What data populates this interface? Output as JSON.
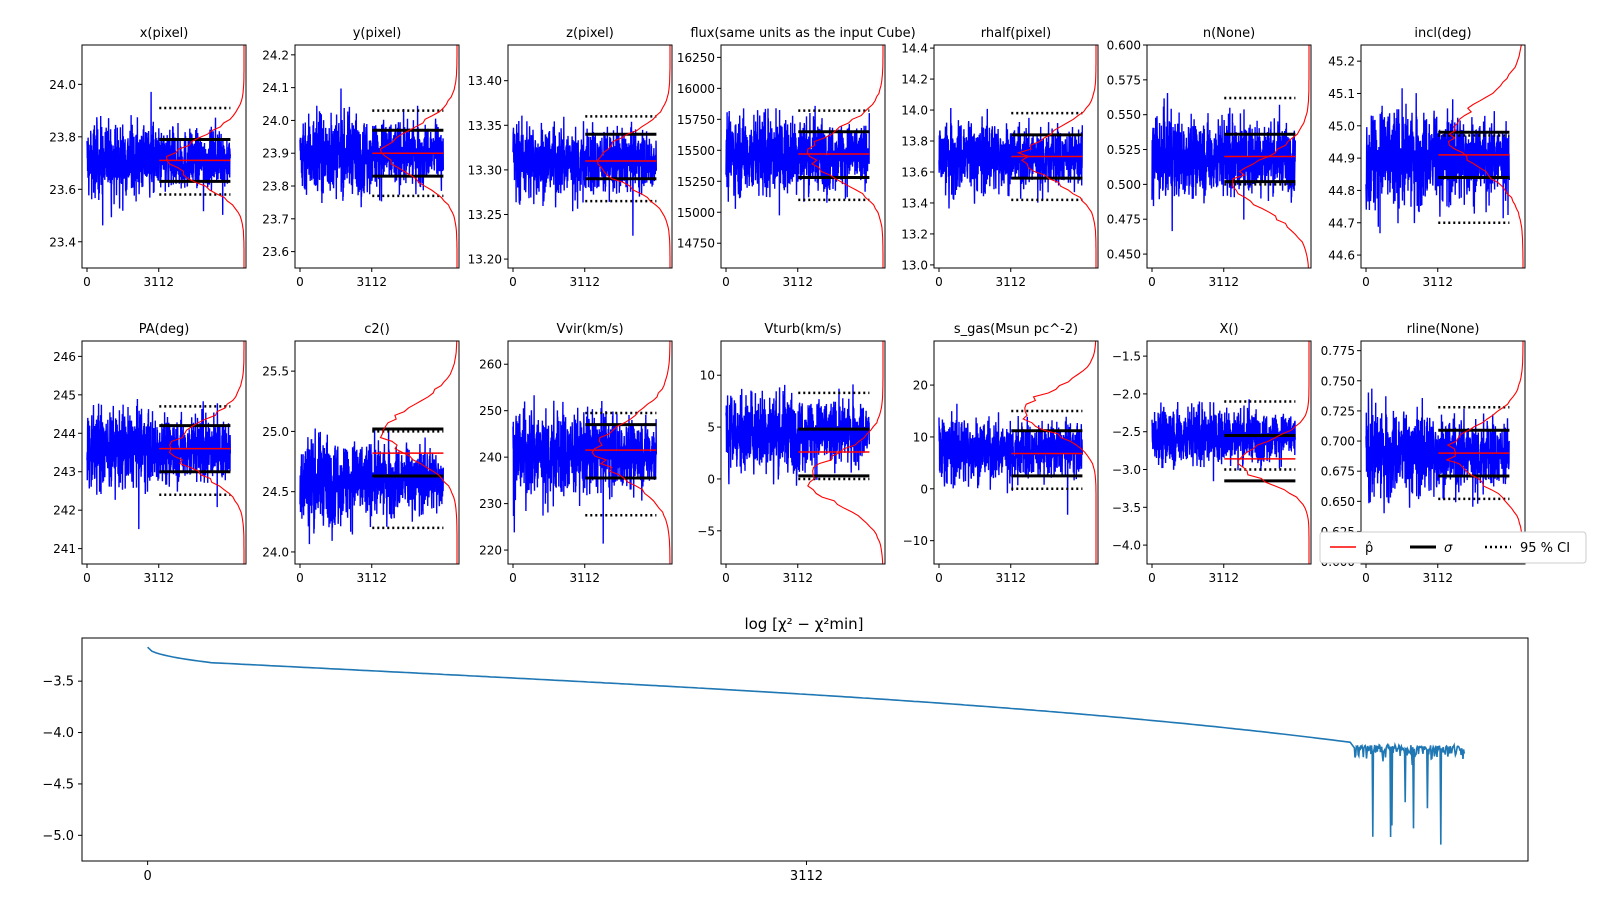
{
  "figure": {
    "type": "mcmc-trace-panel",
    "legend": {
      "placement": "lower-right-of-middle-row",
      "entries": [
        {
          "label": "p̂",
          "style": "red-line",
          "color": "#ff0000"
        },
        {
          "label": "σ",
          "style": "black-thick-line",
          "color": "#000000"
        },
        {
          "label": "95 % CI",
          "style": "black-dotted-line",
          "color": "#000000"
        }
      ]
    },
    "colors": {
      "trace": "#0000ff",
      "histogram": "#ff0000",
      "best": "#ff0000",
      "sigma": "#000000",
      "chi2": "#1f77b4"
    }
  },
  "chart_data": [
    {
      "type": "line",
      "title": "x(pixel)",
      "xticks": [
        "0",
        "3112"
      ],
      "yticks": [
        {
          "v": 23.4,
          "l": "23.4"
        },
        {
          "v": 23.6,
          "l": "23.6"
        },
        {
          "v": 23.8,
          "l": "23.8"
        },
        {
          "v": 24.0,
          "l": "24.0"
        }
      ],
      "ylim": [
        23.3,
        24.15
      ],
      "center": 23.71,
      "band": [
        23.58,
        23.9
      ],
      "best": 23.71,
      "sigma": [
        23.63,
        23.79
      ],
      "ci": [
        23.58,
        23.91
      ],
      "hist_peak": 23.71
    },
    {
      "type": "line",
      "title": "y(pixel)",
      "xticks": [
        "0",
        "3112"
      ],
      "yticks": [
        {
          "v": 23.6,
          "l": "23.6"
        },
        {
          "v": 23.7,
          "l": "23.7"
        },
        {
          "v": 23.8,
          "l": "23.8"
        },
        {
          "v": 23.9,
          "l": "23.9"
        },
        {
          "v": 24.0,
          "l": "24.0"
        },
        {
          "v": 24.1,
          "l": "24.1"
        },
        {
          "v": 24.2,
          "l": "24.2"
        }
      ],
      "ylim": [
        23.55,
        24.23
      ],
      "center": 23.9,
      "band": [
        23.76,
        24.04
      ],
      "best": 23.9,
      "sigma": [
        23.83,
        23.97
      ],
      "ci": [
        23.77,
        24.03
      ],
      "hist_peak": 23.9
    },
    {
      "type": "line",
      "title": "z(pixel)",
      "xticks": [
        "0",
        "3112"
      ],
      "yticks": [
        {
          "v": 13.2,
          "l": "13.20"
        },
        {
          "v": 13.25,
          "l": "13.25"
        },
        {
          "v": 13.3,
          "l": "13.30"
        },
        {
          "v": 13.35,
          "l": "13.35"
        },
        {
          "v": 13.4,
          "l": "13.40"
        }
      ],
      "ylim": [
        13.19,
        13.44
      ],
      "center": 13.31,
      "band": [
        13.26,
        13.36
      ],
      "best": 13.31,
      "sigma": [
        13.29,
        13.34
      ],
      "ci": [
        13.265,
        13.36
      ],
      "hist_peak": 13.31
    },
    {
      "type": "line",
      "title": "flux(same units as the input Cube)",
      "xticks": [
        "0",
        "3112"
      ],
      "yticks": [
        {
          "v": 14750,
          "l": "14750"
        },
        {
          "v": 15000,
          "l": "15000"
        },
        {
          "v": 15250,
          "l": "15250"
        },
        {
          "v": 15500,
          "l": "15500"
        },
        {
          "v": 15750,
          "l": "15750"
        },
        {
          "v": 16000,
          "l": "16000"
        },
        {
          "v": 16250,
          "l": "16250"
        }
      ],
      "ylim": [
        14550,
        16350
      ],
      "center": 15470,
      "band": [
        15100,
        15850
      ],
      "best": 15470,
      "sigma": [
        15280,
        15650
      ],
      "ci": [
        15100,
        15820
      ],
      "hist_peak": 15470
    },
    {
      "type": "line",
      "title": "rhalf(pixel)",
      "xticks": [
        "0",
        "3112"
      ],
      "yticks": [
        {
          "v": 13.0,
          "l": "13.0"
        },
        {
          "v": 13.2,
          "l": "13.2"
        },
        {
          "v": 13.4,
          "l": "13.4"
        },
        {
          "v": 13.6,
          "l": "13.6"
        },
        {
          "v": 13.8,
          "l": "13.8"
        },
        {
          "v": 14.0,
          "l": "14.0"
        },
        {
          "v": 14.2,
          "l": "14.2"
        },
        {
          "v": 14.4,
          "l": "14.4"
        }
      ],
      "ylim": [
        12.98,
        14.42
      ],
      "center": 13.7,
      "band": [
        13.42,
        13.98
      ],
      "best": 13.7,
      "sigma": [
        13.56,
        13.84
      ],
      "ci": [
        13.42,
        13.98
      ],
      "hist_peak": 13.7
    },
    {
      "type": "line",
      "title": "n(None)",
      "xticks": [
        "0",
        "3112"
      ],
      "yticks": [
        {
          "v": 0.45,
          "l": "0.450"
        },
        {
          "v": 0.475,
          "l": "0.475"
        },
        {
          "v": 0.5,
          "l": "0.500"
        },
        {
          "v": 0.525,
          "l": "0.525"
        },
        {
          "v": 0.55,
          "l": "0.550"
        },
        {
          "v": 0.575,
          "l": "0.575"
        },
        {
          "v": 0.6,
          "l": "0.600"
        }
      ],
      "ylim": [
        0.44,
        0.6
      ],
      "center": 0.52,
      "band": [
        0.5,
        0.57
      ],
      "best": 0.52,
      "sigma": [
        0.502,
        0.536
      ],
      "ci": [
        0.5,
        0.562
      ],
      "hist_peak": 0.5
    },
    {
      "type": "line",
      "title": "incl(deg)",
      "xticks": [
        "0",
        "3112"
      ],
      "yticks": [
        {
          "v": 44.6,
          "l": "44.6"
        },
        {
          "v": 44.7,
          "l": "44.7"
        },
        {
          "v": 44.8,
          "l": "44.8"
        },
        {
          "v": 44.9,
          "l": "44.9"
        },
        {
          "v": 45.0,
          "l": "45.0"
        },
        {
          "v": 45.1,
          "l": "45.1"
        },
        {
          "v": 45.2,
          "l": "45.2"
        }
      ],
      "ylim": [
        44.56,
        45.25
      ],
      "center": 44.9,
      "band": [
        44.6,
        44.97
      ],
      "best": 44.91,
      "sigma": [
        44.84,
        44.98
      ],
      "ci": [
        44.7,
        44.97
      ],
      "hist_peak": 44.97
    },
    {
      "type": "line",
      "title": "PA(deg)",
      "xticks": [
        "0",
        "3112"
      ],
      "yticks": [
        {
          "v": 241,
          "l": "241"
        },
        {
          "v": 242,
          "l": "242"
        },
        {
          "v": 243,
          "l": "243"
        },
        {
          "v": 244,
          "l": "244"
        },
        {
          "v": 245,
          "l": "245"
        },
        {
          "v": 246,
          "l": "246"
        }
      ],
      "ylim": [
        240.6,
        246.4
      ],
      "center": 243.6,
      "band": [
        242.4,
        244.8
      ],
      "best": 243.6,
      "sigma": [
        243.0,
        244.2
      ],
      "ci": [
        242.4,
        244.7
      ],
      "hist_peak": 243.6
    },
    {
      "type": "line",
      "title": "c2()",
      "xticks": [
        "0",
        "3112"
      ],
      "yticks": [
        {
          "v": 24.0,
          "l": "24.0"
        },
        {
          "v": 24.5,
          "l": "24.5"
        },
        {
          "v": 25.0,
          "l": "25.0"
        },
        {
          "v": 25.5,
          "l": "25.5"
        }
      ],
      "ylim": [
        23.9,
        25.75
      ],
      "center": 24.6,
      "band": [
        24.2,
        25.0
      ],
      "best": 24.82,
      "sigma": [
        24.63,
        25.02
      ],
      "ci": [
        24.2,
        25.0
      ],
      "hist_peak": 25.0
    },
    {
      "type": "line",
      "title": "Vvir(km/s)",
      "xticks": [
        "0",
        "3112"
      ],
      "yticks": [
        {
          "v": 220,
          "l": "220"
        },
        {
          "v": 230,
          "l": "230"
        },
        {
          "v": 240,
          "l": "240"
        },
        {
          "v": 250,
          "l": "250"
        },
        {
          "v": 260,
          "l": "260"
        }
      ],
      "ylim": [
        217,
        265
      ],
      "center": 241,
      "band": [
        227,
        250
      ],
      "best": 241.5,
      "sigma": [
        235.5,
        247
      ],
      "ci": [
        227.5,
        249.5
      ],
      "hist_peak": 241.5
    },
    {
      "type": "line",
      "title": "Vturb(km/s)",
      "xticks": [
        "0",
        "3112"
      ],
      "yticks": [
        {
          "v": -5,
          "l": "−5"
        },
        {
          "v": 0,
          "l": "0"
        },
        {
          "v": 5,
          "l": "5"
        },
        {
          "v": 10,
          "l": "10"
        }
      ],
      "ylim": [
        -8.2,
        13.3
      ],
      "center": 4.5,
      "band": [
        0,
        9
      ],
      "best": 2.6,
      "sigma": [
        0.3,
        4.8
      ],
      "ci": [
        0,
        8.3
      ],
      "hist_peak": 0
    },
    {
      "type": "line",
      "title": "s_gas(Msun pc^-2)",
      "xticks": [
        "0",
        "3112"
      ],
      "yticks": [
        {
          "v": -10,
          "l": "−10"
        },
        {
          "v": 0,
          "l": "0"
        },
        {
          "v": 10,
          "l": "10"
        },
        {
          "v": 20,
          "l": "20"
        }
      ],
      "ylim": [
        -14.5,
        28.5
      ],
      "center": 7.5,
      "band": [
        0,
        15
      ],
      "best": 6.8,
      "sigma": [
        2.5,
        11.2
      ],
      "ci": [
        0,
        15
      ],
      "hist_peak": 15
    },
    {
      "type": "line",
      "title": "X()",
      "xticks": [
        "0",
        "3112"
      ],
      "yticks": [
        {
          "v": -4.0,
          "l": "−4.0"
        },
        {
          "v": -3.5,
          "l": "−3.5"
        },
        {
          "v": -3.0,
          "l": "−3.0"
        },
        {
          "v": -2.5,
          "l": "−2.5"
        },
        {
          "v": -2.0,
          "l": "−2.0"
        },
        {
          "v": -1.5,
          "l": "−1.5"
        }
      ],
      "ylim": [
        -4.25,
        -1.3
      ],
      "center": -2.55,
      "band": [
        -3.0,
        -2.08
      ],
      "best": -2.86,
      "sigma": [
        -3.15,
        -2.55
      ],
      "ci": [
        -3.0,
        -2.1
      ],
      "hist_peak": -2.9
    },
    {
      "type": "line",
      "title": "rline(None)",
      "xticks": [
        "0",
        "3112"
      ],
      "yticks": [
        {
          "v": 0.6,
          "l": "0.600"
        },
        {
          "v": 0.625,
          "l": "0.625"
        },
        {
          "v": 0.65,
          "l": "0.650"
        },
        {
          "v": 0.675,
          "l": "0.675"
        },
        {
          "v": 0.7,
          "l": "0.700"
        },
        {
          "v": 0.725,
          "l": "0.725"
        },
        {
          "v": 0.75,
          "l": "0.750"
        },
        {
          "v": 0.775,
          "l": "0.775"
        }
      ],
      "ylim": [
        0.598,
        0.783
      ],
      "center": 0.69,
      "band": [
        0.645,
        0.73
      ],
      "best": 0.69,
      "sigma": [
        0.671,
        0.709
      ],
      "ci": [
        0.652,
        0.728
      ],
      "hist_peak": 0.69
    }
  ],
  "chi2": {
    "type": "line",
    "title": "log  [χ² − χ²min]",
    "xticks": [
      "0",
      "3112"
    ],
    "yticks": [
      {
        "v": -5.0,
        "l": "−5.0"
      },
      {
        "v": -4.5,
        "l": "−4.5"
      },
      {
        "v": -4.0,
        "l": "−4.0"
      },
      {
        "v": -3.5,
        "l": "−3.5"
      }
    ],
    "ylim": [
      -5.25,
      -3.08
    ],
    "xlim": [
      -310,
      6520
    ],
    "n_steps": 6220,
    "burnin_end": 5700,
    "start": -3.17,
    "knee": -3.32,
    "end_trend": -4.1,
    "noise_range": [
      -5.15,
      -4.12
    ]
  }
}
